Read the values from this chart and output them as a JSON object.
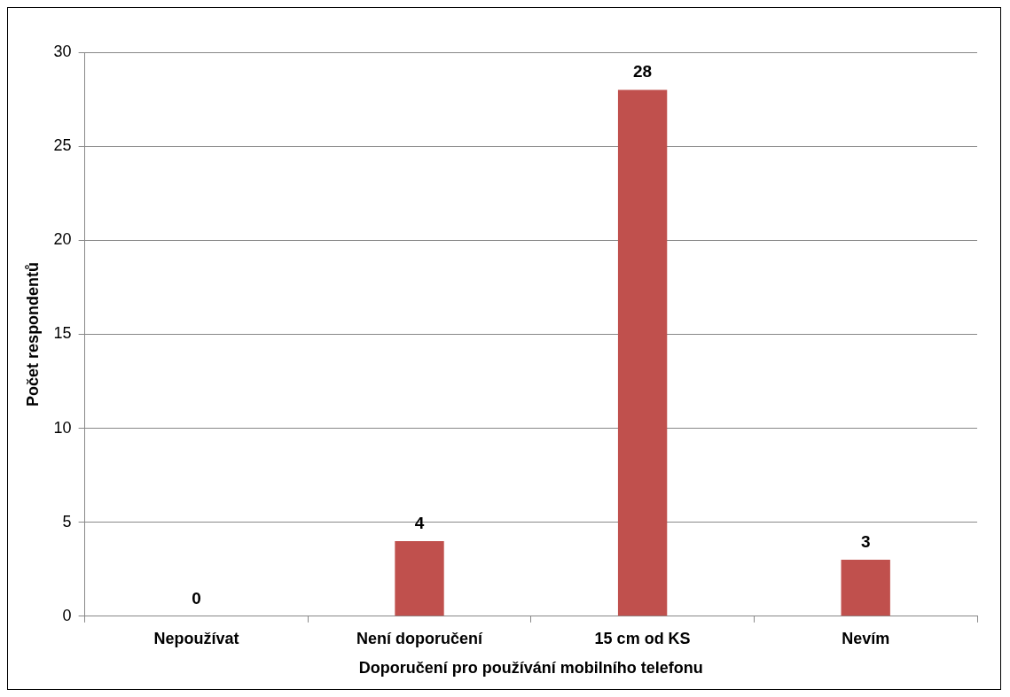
{
  "chart_data": {
    "type": "bar",
    "xlabel": "Doporučení pro používání mobilního telefonu",
    "ylabel": "Počet respondentů",
    "categories": [
      "Nepoužívat",
      "Není doporučení",
      "15 cm od KS",
      "Nevím"
    ],
    "values": [
      0,
      4,
      28,
      3
    ],
    "color": "#c0504d",
    "ylim": [
      0,
      30
    ],
    "yticks": [
      0,
      5,
      10,
      15,
      20,
      25,
      30
    ],
    "grid": "y",
    "legend": false,
    "data_labels": true
  }
}
